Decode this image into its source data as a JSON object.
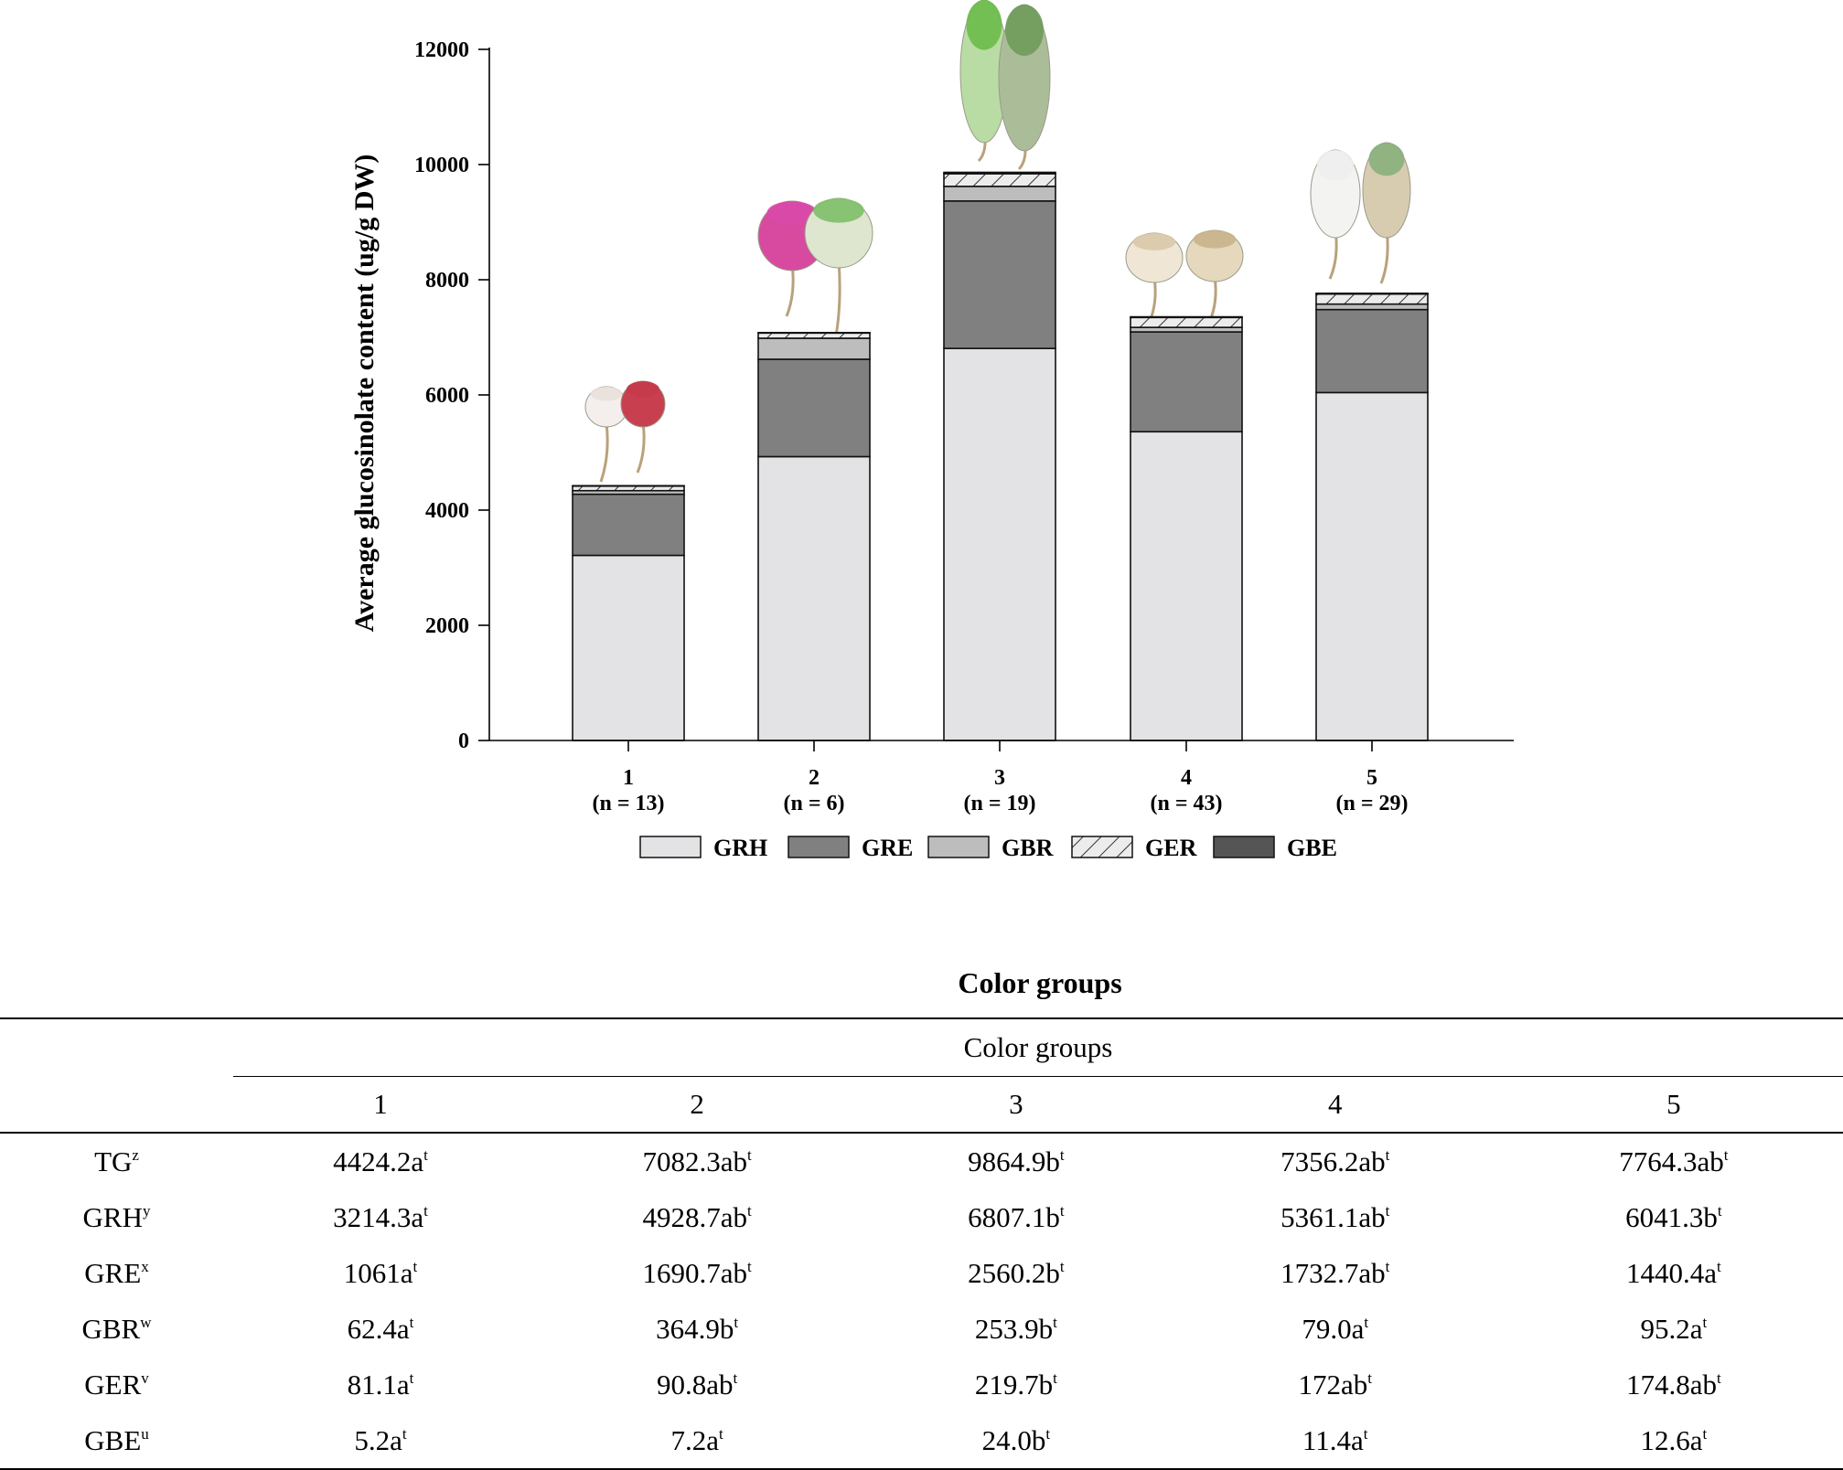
{
  "chart_data": {
    "type": "bar",
    "stacked": true,
    "ylabel": "Average glucosinolate content (ug/g DW)",
    "xlabel": "Color groups",
    "ylim": [
      0,
      12000
    ],
    "yticks": [
      0,
      2000,
      4000,
      6000,
      8000,
      10000,
      12000
    ],
    "category_labels": [
      "1",
      "2",
      "3",
      "4",
      "5"
    ],
    "category_counts": [
      "(n = 13)",
      "(n = 6)",
      "(n = 19)",
      "(n = 43)",
      "(n = 29)"
    ],
    "series": [
      {
        "name": "GRH",
        "color": "#e3e3e5",
        "pattern": "solid",
        "values": [
          3214.3,
          4928.7,
          6807.1,
          5361.1,
          6041.3
        ]
      },
      {
        "name": "GRE",
        "color": "#7f807f",
        "pattern": "solid",
        "values": [
          1061,
          1690.7,
          2560.2,
          1732.7,
          1440.4
        ]
      },
      {
        "name": "GBR",
        "color": "#bdbdbd",
        "pattern": "solid",
        "values": [
          62.4,
          364.9,
          253.9,
          79.0,
          95.2
        ]
      },
      {
        "name": "GER",
        "color": "#e6e6e6",
        "pattern": "hatch",
        "values": [
          81.1,
          90.8,
          219.7,
          172,
          174.8
        ]
      },
      {
        "name": "GBE",
        "color": "#555555",
        "pattern": "solid",
        "values": [
          5.2,
          7.2,
          24.0,
          11.4,
          12.6
        ]
      }
    ],
    "legend_position": "bottom"
  },
  "table": {
    "header": "Color  groups",
    "columns": [
      "1",
      "2",
      "3",
      "4",
      "5"
    ],
    "rows": [
      {
        "label": "TG",
        "sup": "z",
        "cells": [
          {
            "v": "4424.2a",
            "s": "t"
          },
          {
            "v": "7082.3ab",
            "s": "t"
          },
          {
            "v": "9864.9b",
            "s": "t"
          },
          {
            "v": "7356.2ab",
            "s": "t"
          },
          {
            "v": "7764.3ab",
            "s": "t"
          }
        ]
      },
      {
        "label": "GRH",
        "sup": "y",
        "cells": [
          {
            "v": "3214.3a",
            "s": "t"
          },
          {
            "v": "4928.7ab",
            "s": "t"
          },
          {
            "v": "6807.1b",
            "s": "t"
          },
          {
            "v": "5361.1ab",
            "s": "t"
          },
          {
            "v": "6041.3b",
            "s": "t"
          }
        ]
      },
      {
        "label": "GRE",
        "sup": "x",
        "cells": [
          {
            "v": "1061a",
            "s": "t"
          },
          {
            "v": "1690.7ab",
            "s": "t"
          },
          {
            "v": "2560.2b",
            "s": "t"
          },
          {
            "v": "1732.7ab",
            "s": "t"
          },
          {
            "v": "1440.4a",
            "s": "t"
          }
        ]
      },
      {
        "label": "GBR",
        "sup": "w",
        "cells": [
          {
            "v": "62.4a",
            "s": "t"
          },
          {
            "v": "364.9b",
            "s": "t"
          },
          {
            "v": "253.9b",
            "s": "t"
          },
          {
            "v": "79.0a",
            "s": "t"
          },
          {
            "v": "95.2a",
            "s": "t"
          }
        ]
      },
      {
        "label": "GER",
        "sup": "v",
        "cells": [
          {
            "v": "81.1a",
            "s": "t"
          },
          {
            "v": "90.8ab",
            "s": "t"
          },
          {
            "v": "219.7b",
            "s": "t"
          },
          {
            "v": "172ab",
            "s": "t"
          },
          {
            "v": "174.8ab",
            "s": "t"
          }
        ]
      },
      {
        "label": "GBE",
        "sup": "u",
        "cells": [
          {
            "v": "5.2a",
            "s": "t"
          },
          {
            "v": "7.2a",
            "s": "t"
          },
          {
            "v": "24.0b",
            "s": "t"
          },
          {
            "v": "11.4a",
            "s": "t"
          },
          {
            "v": "12.6a",
            "s": "t"
          }
        ]
      }
    ]
  }
}
